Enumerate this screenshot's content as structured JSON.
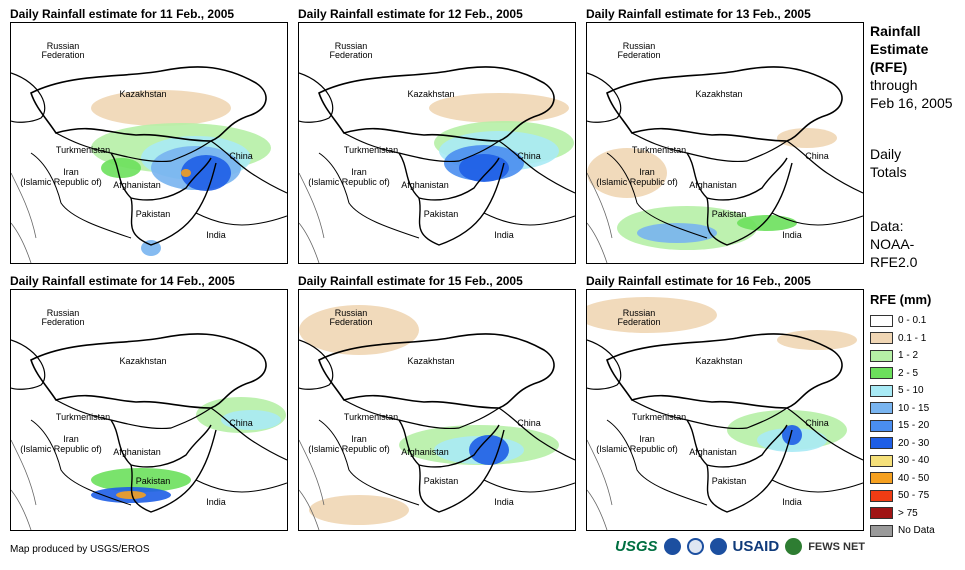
{
  "panels": [
    {
      "title": "Daily Rainfall estimate for 11 Feb., 2005"
    },
    {
      "title": "Daily Rainfall estimate for 12 Feb., 2005"
    },
    {
      "title": "Daily Rainfall estimate for 13 Feb., 2005"
    },
    {
      "title": "Daily Rainfall estimate for 14 Feb., 2005"
    },
    {
      "title": "Daily Rainfall estimate for 15 Feb., 2005"
    },
    {
      "title": "Daily Rainfall estimate for 16 Feb., 2005"
    }
  ],
  "labels": {
    "russia_1": "Russian",
    "russia_2": "Federation",
    "kazakhstan": "Kazakhstan",
    "turkmenistan": "Turkmenistan",
    "iran_1": "Iran",
    "iran_2": "(Islamic Republic of)",
    "afghanistan": "Afghanistan",
    "pakistan": "Pakistan",
    "china": "China",
    "india": "India"
  },
  "side": {
    "heading_1": "Rainfall",
    "heading_2": "Estimate",
    "heading_3": "(RFE)",
    "through_1": "through",
    "through_2": "Feb 16, 2005",
    "daily_1": "Daily",
    "daily_2": "Totals",
    "data_1": "Data:",
    "data_2": "NOAA-",
    "data_3": "RFE2.0"
  },
  "legend": {
    "title": "RFE (mm)",
    "items": [
      {
        "label": "0 - 0.1",
        "color": "#ffffff"
      },
      {
        "label": "0.1 - 1",
        "color": "#f0d6b4"
      },
      {
        "label": "1 - 2",
        "color": "#b6f0a6"
      },
      {
        "label": "2 - 5",
        "color": "#6ce05c"
      },
      {
        "label": "5 - 10",
        "color": "#a8eaf5"
      },
      {
        "label": "10 - 15",
        "color": "#78b4f0"
      },
      {
        "label": "15 - 20",
        "color": "#4a8ef0"
      },
      {
        "label": "20 - 30",
        "color": "#1e5ee6"
      },
      {
        "label": "30 - 40",
        "color": "#f5e07a"
      },
      {
        "label": "40 - 50",
        "color": "#f5a020"
      },
      {
        "label": "50 - 75",
        "color": "#f03c14"
      },
      {
        "label": "> 75",
        "color": "#a01414"
      },
      {
        "label": "No Data",
        "color": "#9a9a9a"
      }
    ]
  },
  "credit": "Map produced by USGS/EROS",
  "logos": {
    "usgs": "USGS",
    "usaid": "USAID",
    "fews": "FEWS NET"
  }
}
